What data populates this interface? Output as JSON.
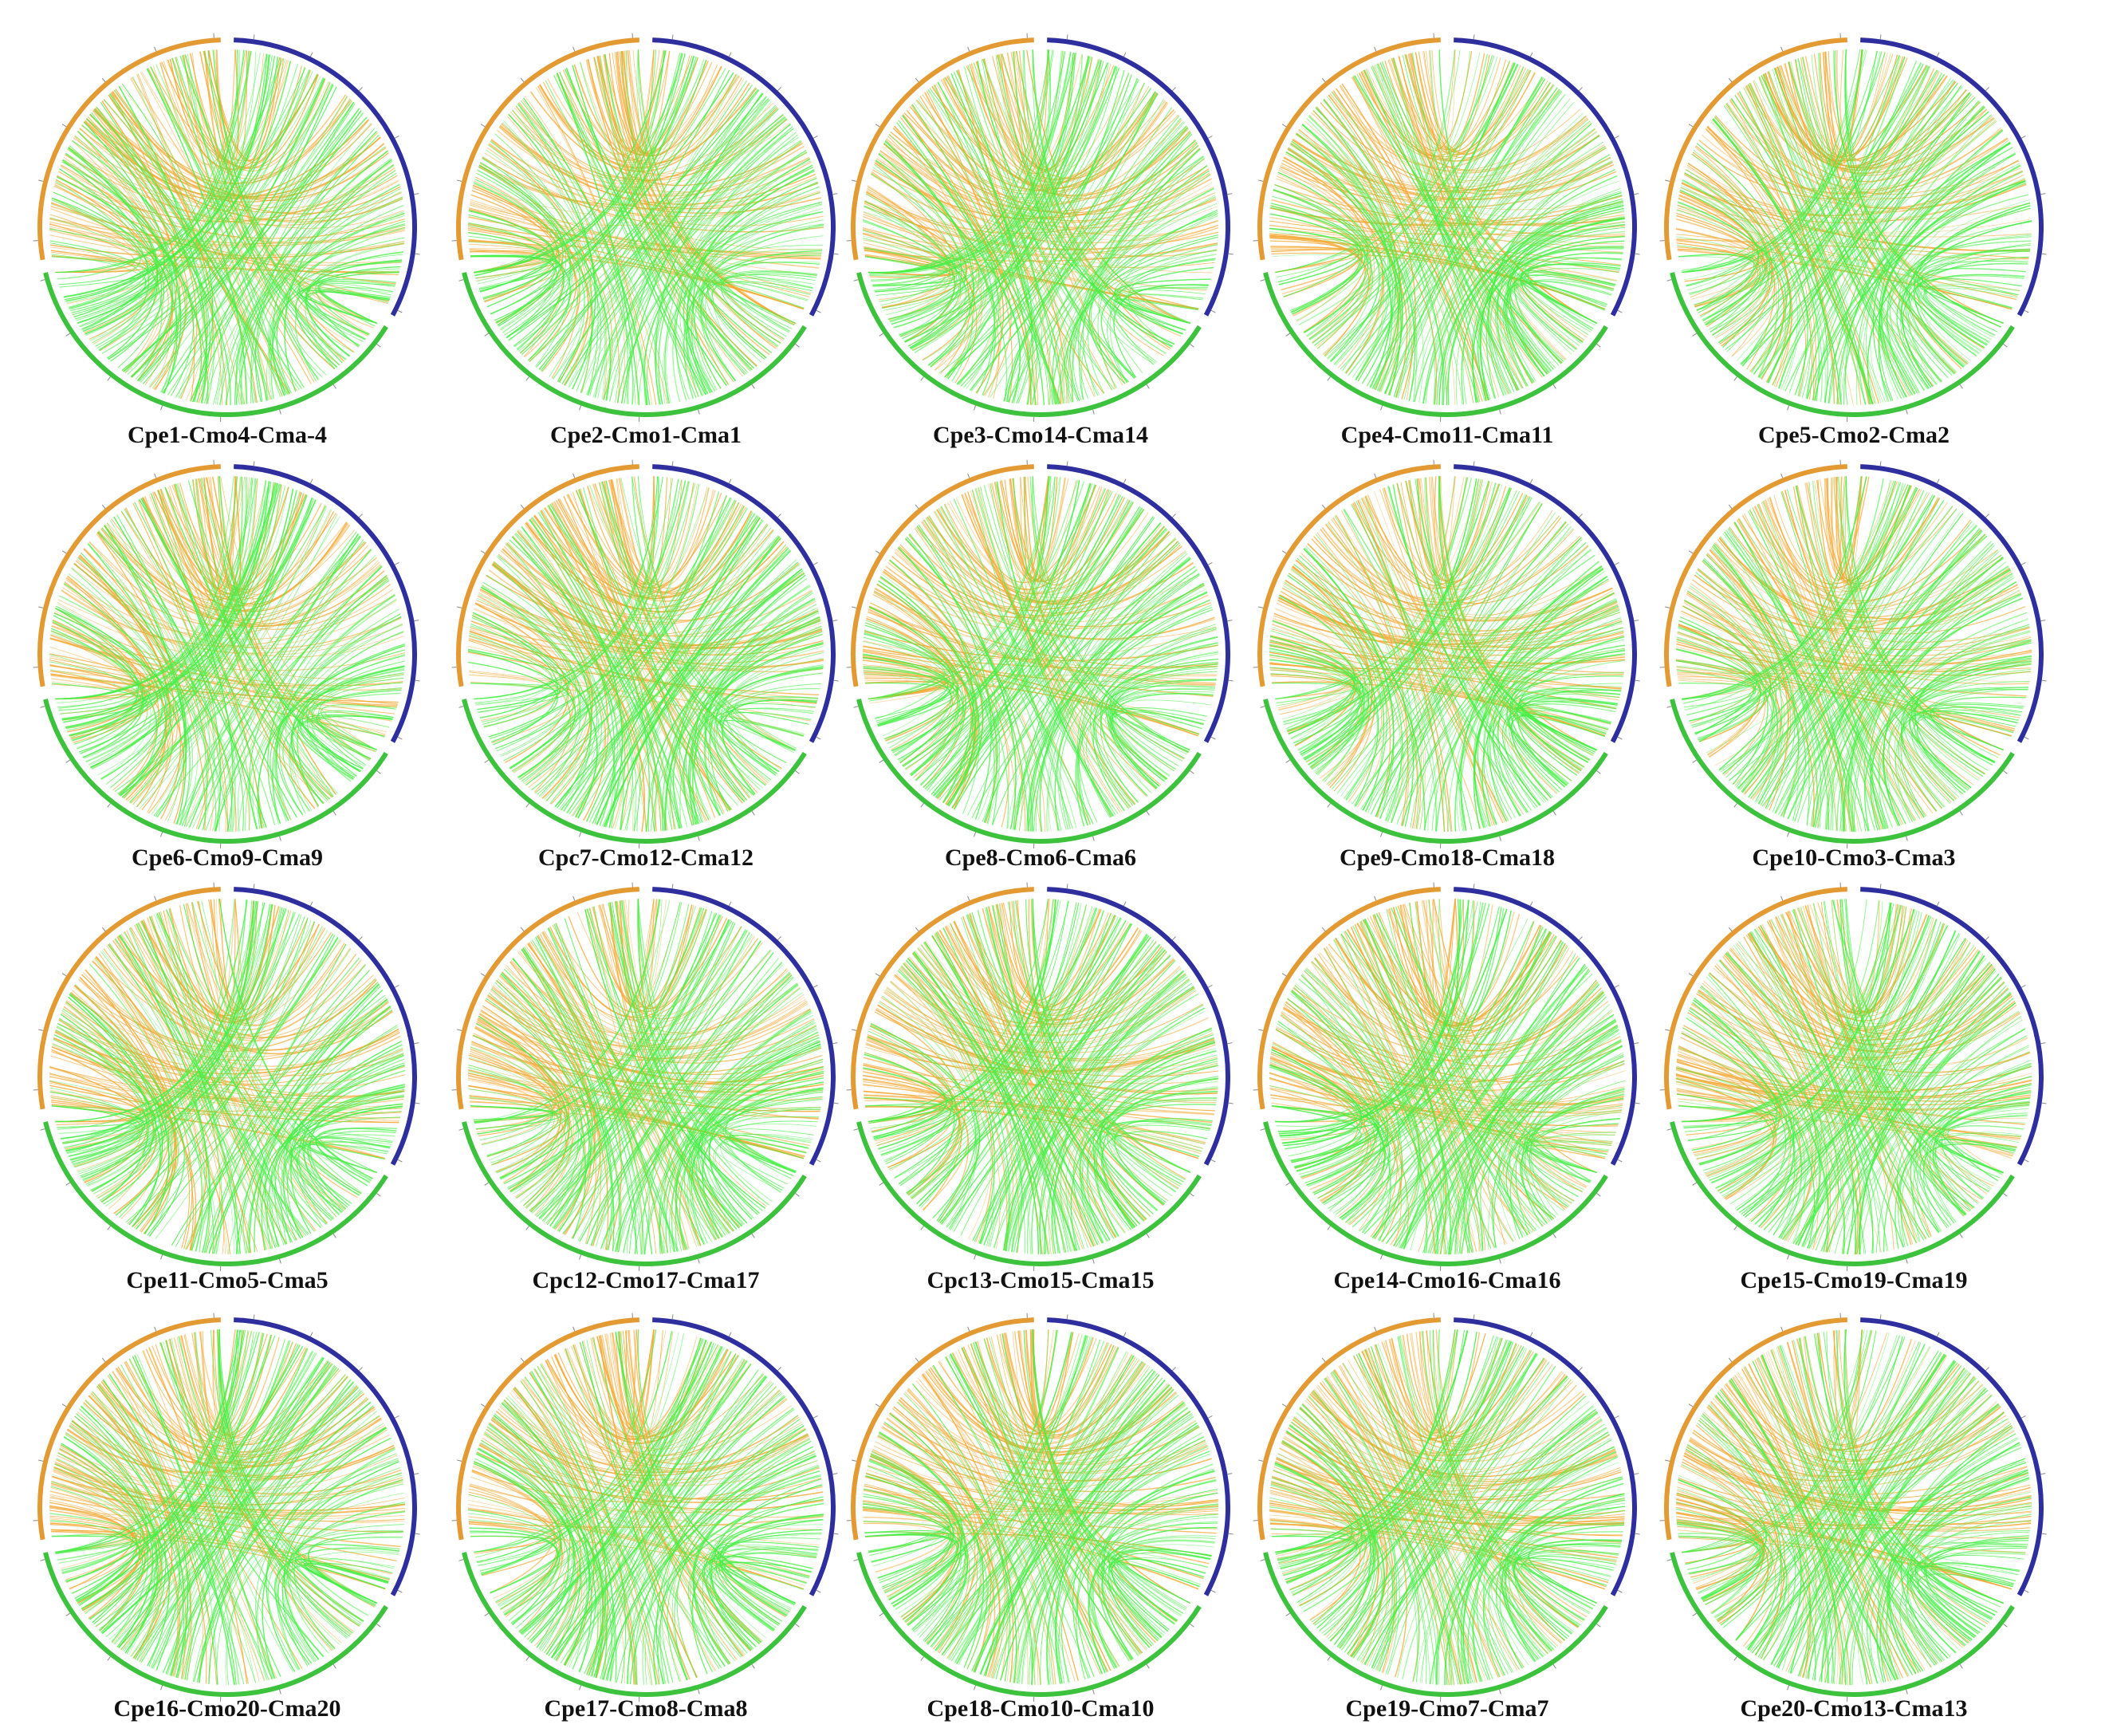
{
  "figure": {
    "type": "circos-synteny-grid",
    "colors": {
      "cpe_track": "#E39A33",
      "cmo_track": "#2E2E9E",
      "cma_track": "#3DC23D",
      "cpe_links": "#F5A020",
      "cmo_links": "#33EE33",
      "background": "#FFFFFF"
    },
    "panels": [
      {
        "title": "Cpe1-Cmo4-Cma-4",
        "ribbon_angle": 170,
        "skew": 0.15
      },
      {
        "title": "Cpe2-Cmo1-Cma1",
        "ribbon_angle": 205,
        "skew": 0.05
      },
      {
        "title": "Cpe3-Cmo14-Cma14",
        "ribbon_angle": 175,
        "skew": 0.2
      },
      {
        "title": "Cpe4-Cmo11-Cma11",
        "ribbon_angle": 190,
        "skew": 0.0
      },
      {
        "title": "Cpe5-Cmo2-Cma2",
        "ribbon_angle": 215,
        "skew": 0.1
      },
      {
        "title": "Cpe6-Cmo9-Cma9",
        "ribbon_angle": 170,
        "skew": 0.15
      },
      {
        "title": "Cpc7-Cmo12-Cma12",
        "ribbon_angle": 172,
        "skew": 0.1
      },
      {
        "title": "Cpe8-Cmo6-Cma6",
        "ribbon_angle": 200,
        "skew": 0.05
      },
      {
        "title": "Cpe9-Cmo18-Cma18",
        "ribbon_angle": 205,
        "skew": 0.05
      },
      {
        "title": "Cpe10-Cmo3-Cma3",
        "ribbon_angle": 210,
        "skew": 0.1
      },
      {
        "title": "Cpe11-Cmo5-Cma5",
        "ribbon_angle": 172,
        "skew": 0.15
      },
      {
        "title": "Cpc12-Cmo17-Cma17",
        "ribbon_angle": 190,
        "skew": 0.1
      },
      {
        "title": "Cpc13-Cmo15-Cma15",
        "ribbon_angle": 200,
        "skew": 0.05
      },
      {
        "title": "Cpe14-Cmo16-Cma16",
        "ribbon_angle": 172,
        "skew": 0.2
      },
      {
        "title": "Cpe15-Cmo19-Cma19",
        "ribbon_angle": 168,
        "skew": 0.15
      },
      {
        "title": "Cpe16-Cmo20-Cma20",
        "ribbon_angle": 205,
        "skew": 0.05
      },
      {
        "title": "Cpe17-Cmo8-Cma8",
        "ribbon_angle": 205,
        "skew": 0.05
      },
      {
        "title": "Cpe18-Cmo10-Cma10",
        "ribbon_angle": 200,
        "skew": 0.0
      },
      {
        "title": "Cpe19-Cmo7-Cma7",
        "ribbon_angle": 205,
        "skew": 0.05
      },
      {
        "title": "Cpe20-Cmo13-Cma13",
        "ribbon_angle": 210,
        "skew": 0.1
      }
    ]
  }
}
